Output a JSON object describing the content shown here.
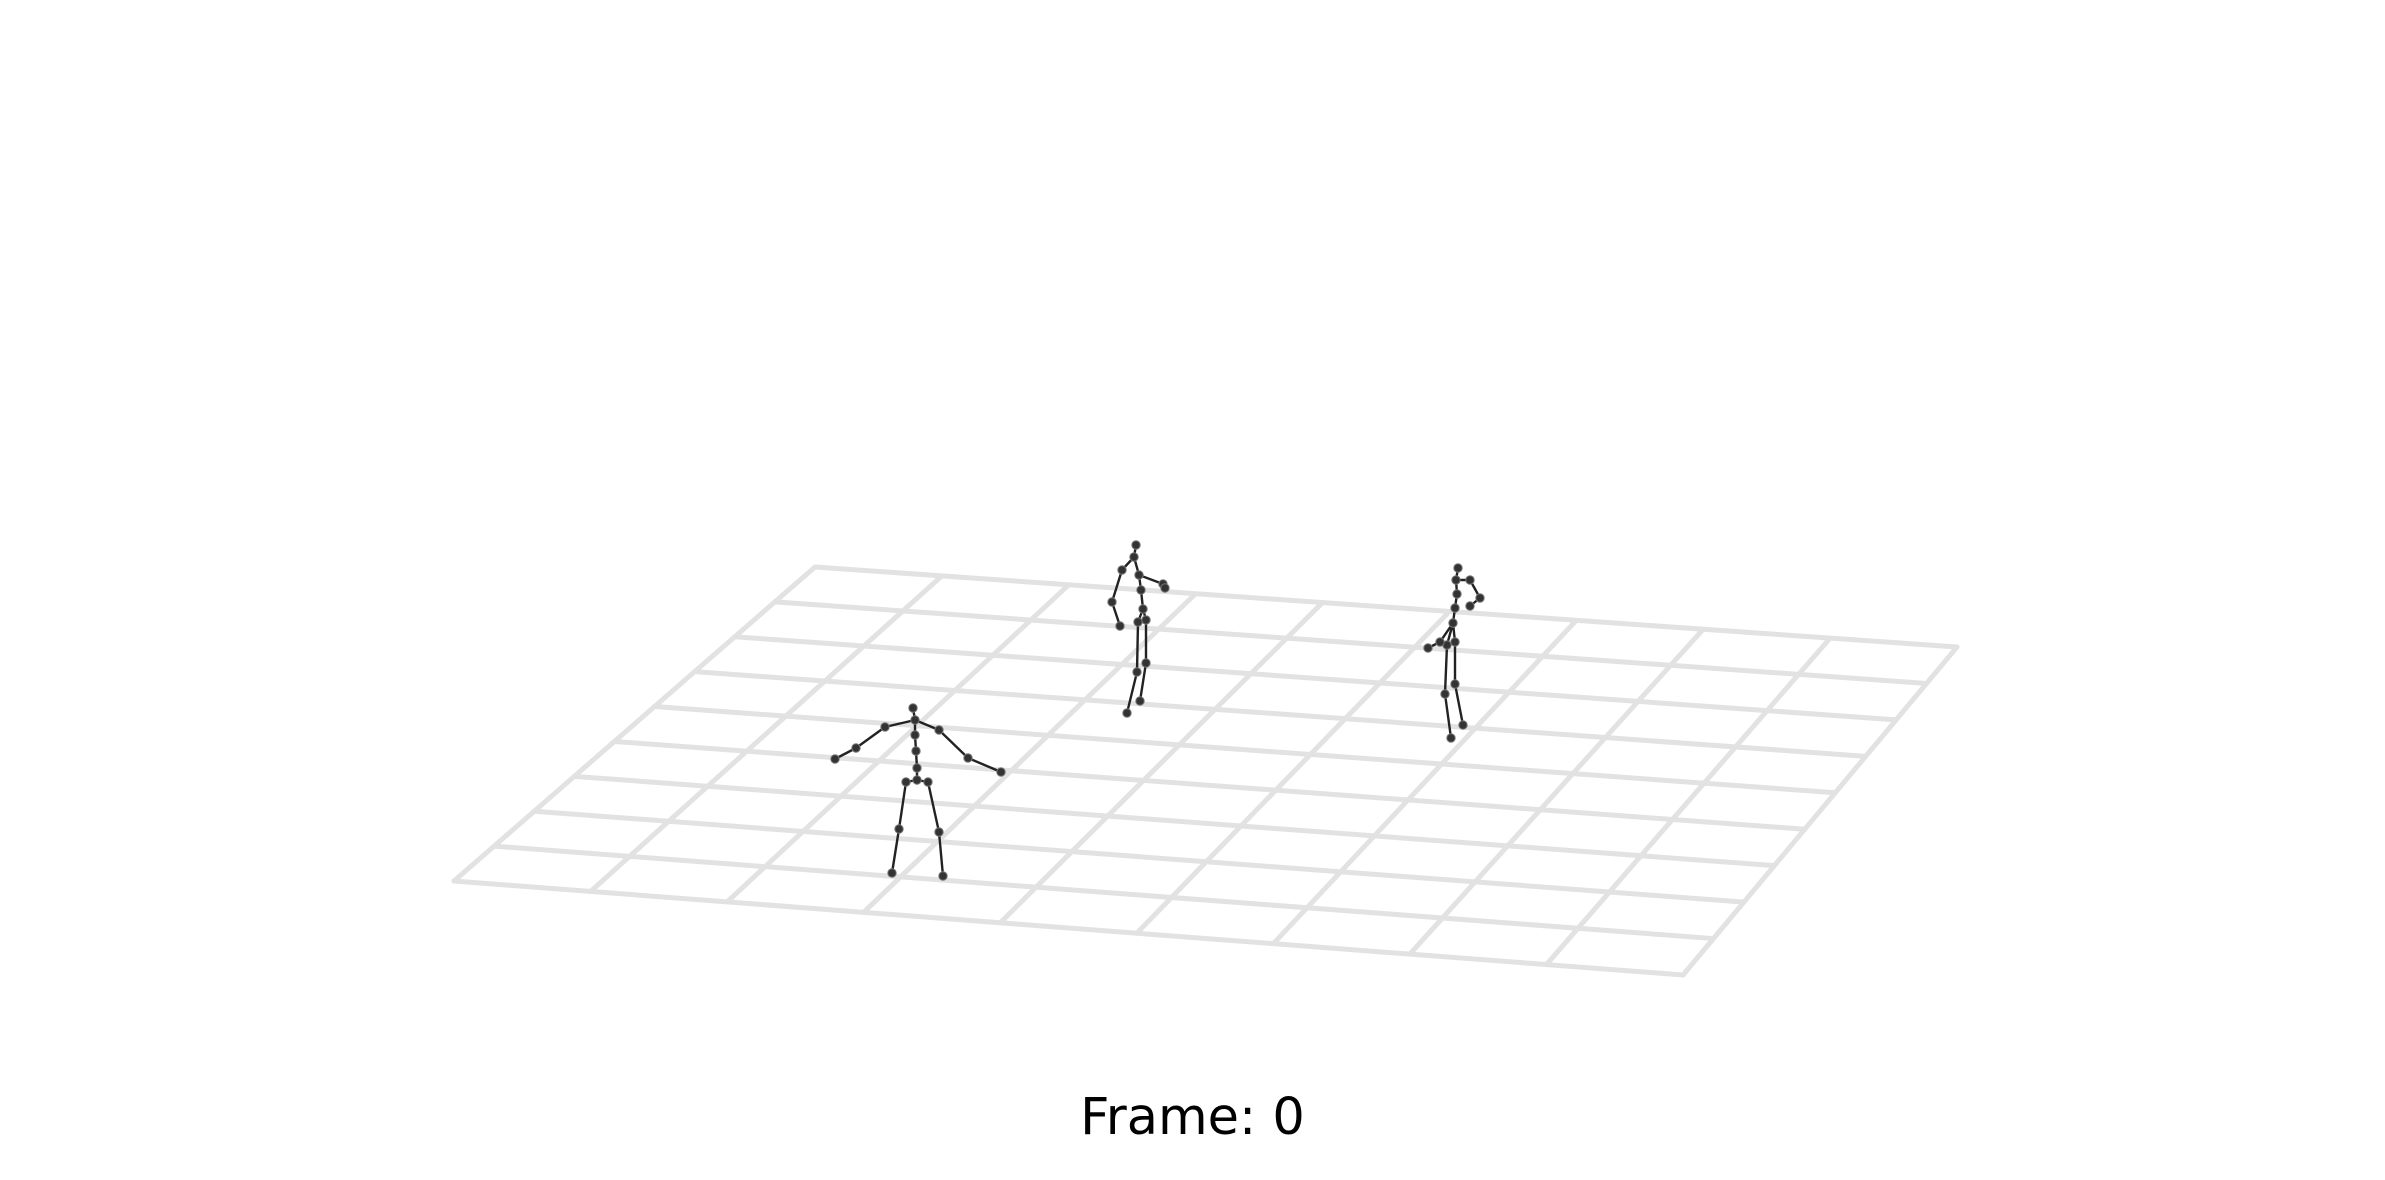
{
  "frame": {
    "label": "Frame: 0"
  },
  "colors": {
    "background": "#ffffff",
    "grid": "#e2e2e2",
    "skeleton": "#222222",
    "joint": "#333333"
  }
}
